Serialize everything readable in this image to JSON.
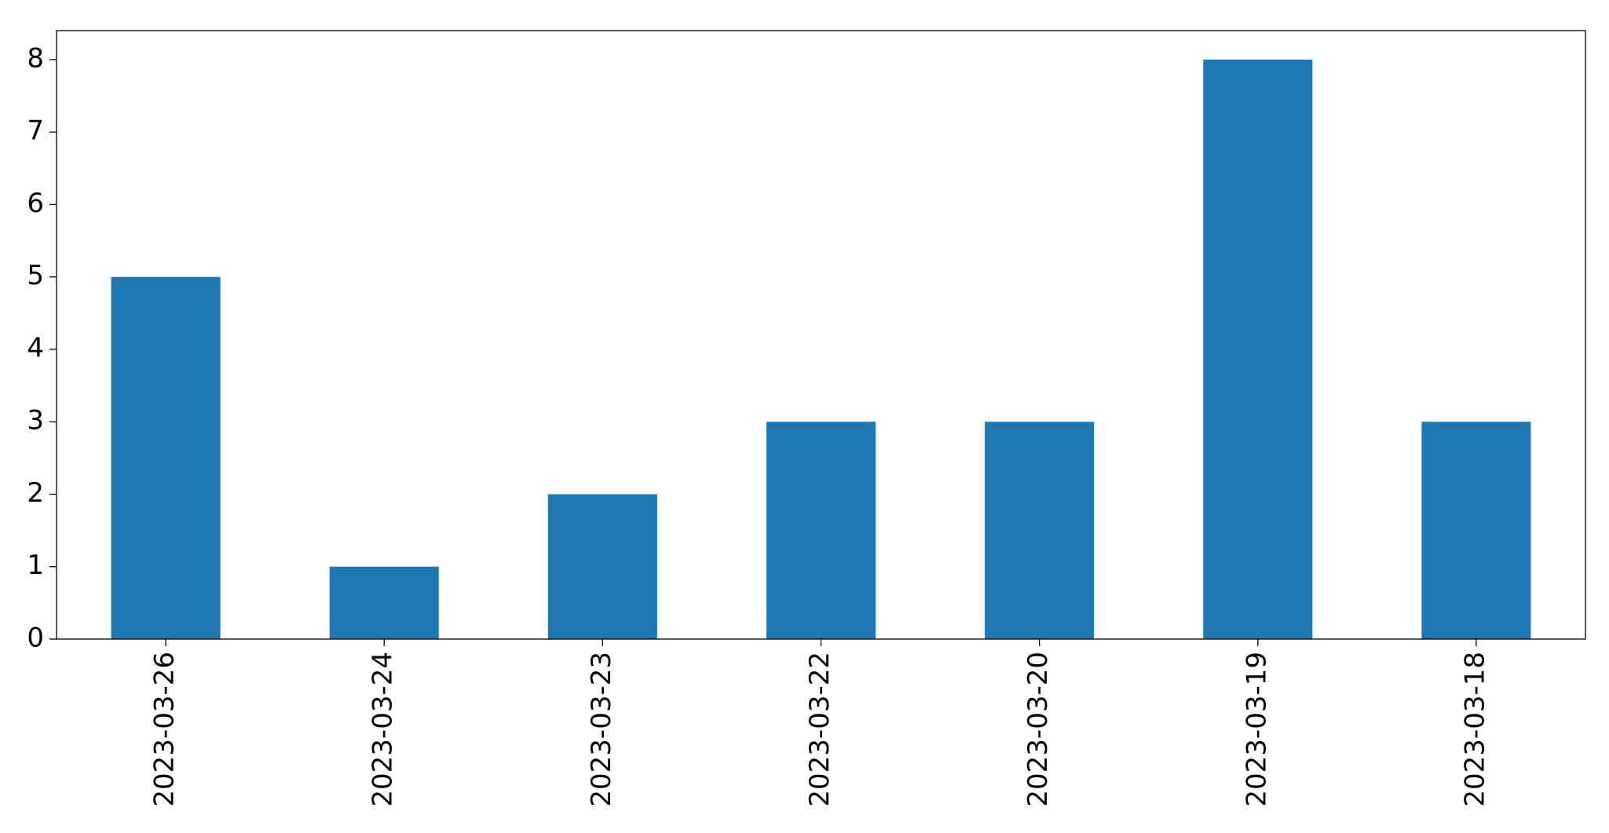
{
  "chart_data": {
    "type": "bar",
    "categories": [
      "2023-03-26",
      "2023-03-24",
      "2023-03-23",
      "2023-03-22",
      "2023-03-20",
      "2023-03-19",
      "2023-03-18"
    ],
    "values": [
      5,
      1,
      2,
      3,
      3,
      8,
      3
    ],
    "color": "#1f77b4",
    "ylim": [
      0,
      8.4
    ],
    "yticks": [
      0,
      1,
      2,
      3,
      4,
      5,
      6,
      7,
      8
    ],
    "grid": false
  }
}
